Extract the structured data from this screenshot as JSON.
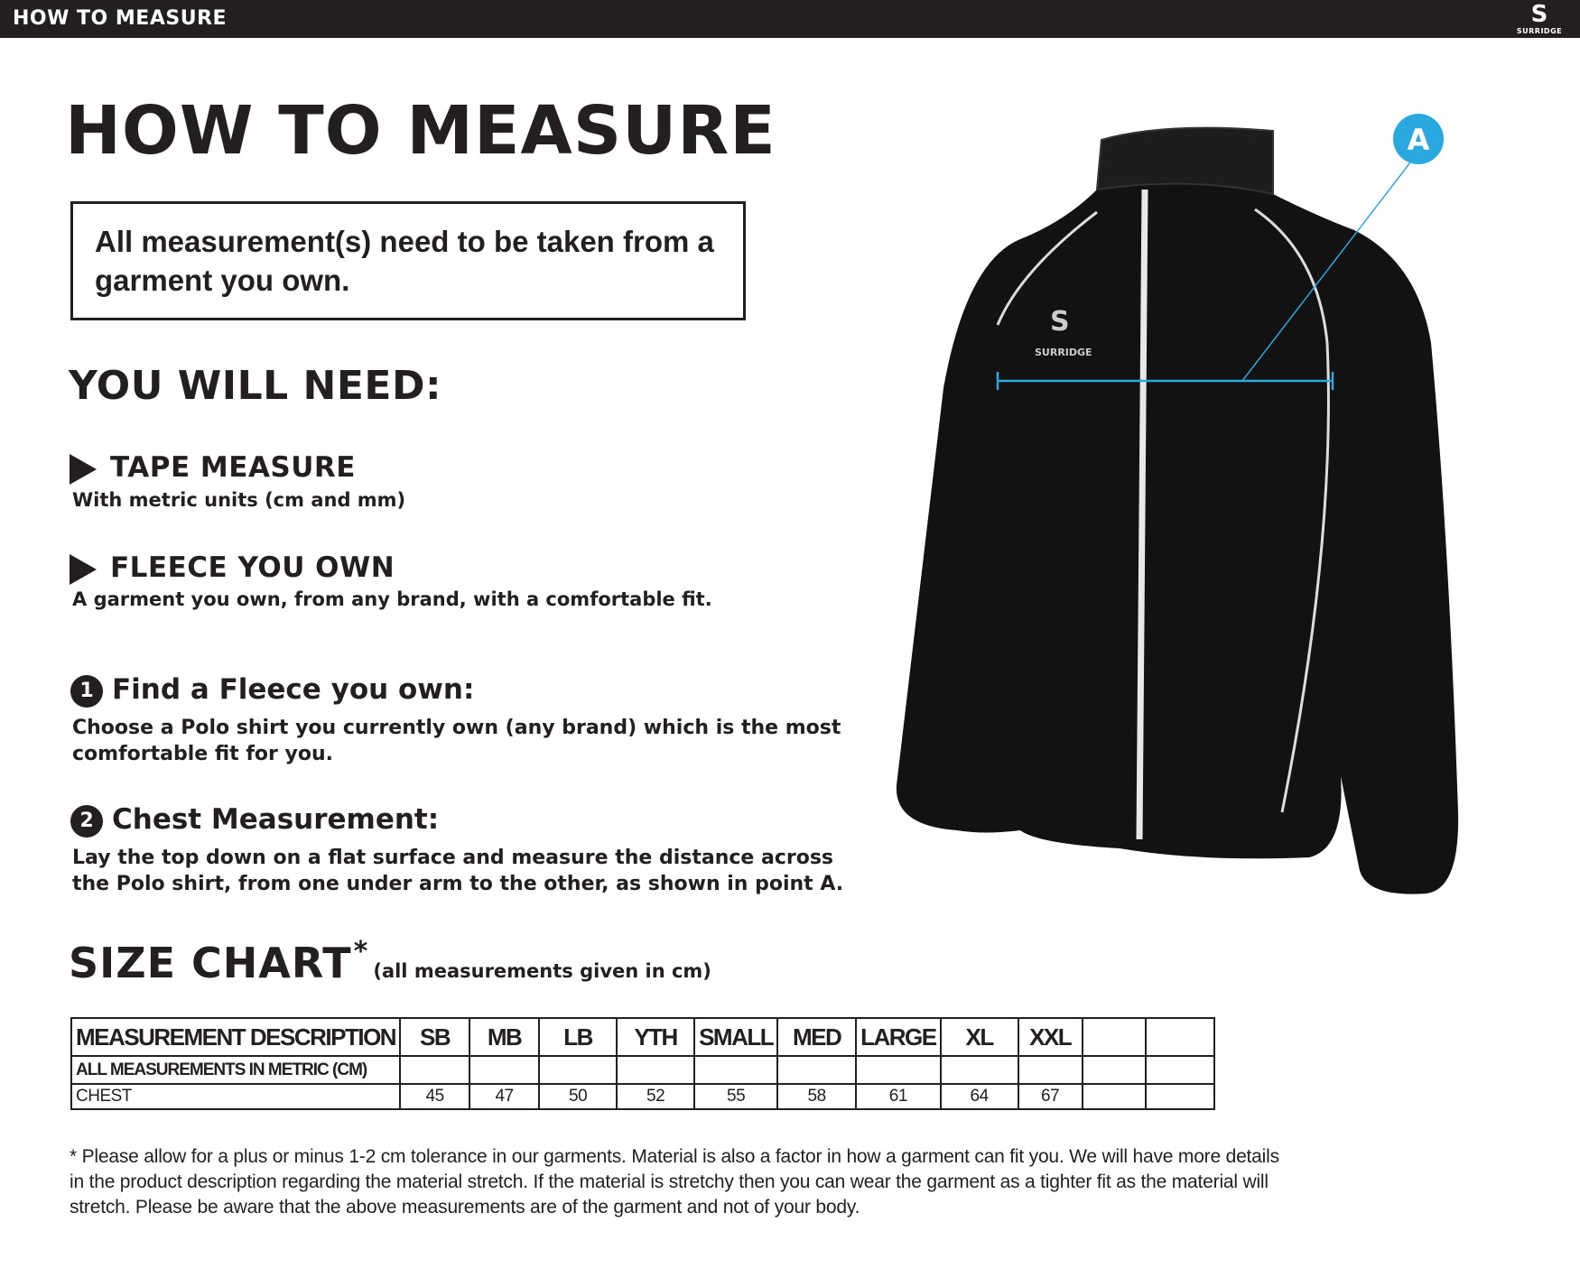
{
  "header": {
    "bar_title": "HOW TO MEASURE",
    "logo_text": "SURRIDGE"
  },
  "title": "HOW TO MEASURE",
  "note": "All measurement(s) need to be taken from a garment you own.",
  "need": {
    "title": "YOU WILL NEED:",
    "items": [
      {
        "heading": "TAPE MEASURE",
        "sub": "With metric units (cm and mm)"
      },
      {
        "heading": "FLEECE YOU OWN",
        "sub": "A garment you own, from any brand, with a comfortable fit."
      }
    ]
  },
  "steps": [
    {
      "number": "1",
      "heading": "Find a Fleece you own:",
      "body": "Choose a Polo shirt you currently own (any brand) which is the most comfortable fit for you."
    },
    {
      "number": "2",
      "heading": "Chest Measurement:",
      "body": "Lay the top down on a flat surface and measure the distance across the Polo shirt, from one under arm to the other, as shown in point A."
    }
  ],
  "diagram": {
    "point_label": "A",
    "accent_color": "#29a9e0",
    "garment_logo_text": "SURRIDGE"
  },
  "size_chart": {
    "title": "SIZE CHART",
    "star": "*",
    "subtitle": "(all measurements given in cm)",
    "header": [
      "MEASUREMENT DESCRIPTION",
      "SB",
      "MB",
      "LB",
      "YTH",
      "SMALL",
      "MED",
      "LARGE",
      "XL",
      "XXL",
      "",
      ""
    ],
    "metric_row": [
      "ALL MEASUREMENTS IN METRIC (CM)",
      "",
      "",
      "",
      "",
      "",
      "",
      "",
      "",
      "",
      "",
      ""
    ],
    "chest_row": [
      "CHEST",
      "45",
      "47",
      "50",
      "52",
      "55",
      "58",
      "61",
      "64",
      "67",
      "",
      ""
    ]
  },
  "footnote": "* Please allow for a plus or minus 1-2 cm tolerance in our garments. Material is also a factor in how a garment can fit you. We will have more details in the product description regarding the material stretch.  If the material is stretchy then you can wear the garment as a tighter fit as the material will stretch.  Please be aware that the above measurements are of the garment and not of your body."
}
